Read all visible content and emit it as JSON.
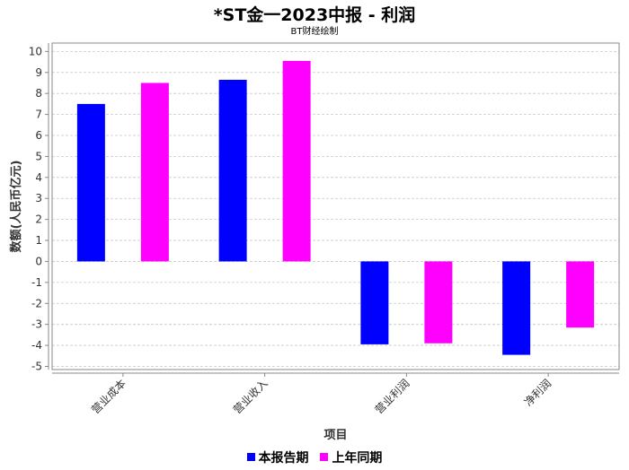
{
  "chart_data": {
    "type": "bar",
    "title": "*ST金一2023中报 - 利润",
    "subtitle": "BT财经绘制",
    "xlabel": "项目",
    "ylabel": "数额(人民币亿元)",
    "categories": [
      "营业成本",
      "营业收入",
      "营业利润",
      "净利润"
    ],
    "series": [
      {
        "name": "本报告期",
        "color": "#0000ff",
        "values": [
          7.5,
          8.65,
          -3.95,
          -4.45
        ]
      },
      {
        "name": "上年同期",
        "color": "#ff00ff",
        "values": [
          8.5,
          9.55,
          -3.9,
          -3.15
        ]
      }
    ],
    "ylim": [
      -5.15,
      10.4
    ],
    "yticks": [
      "10",
      "9",
      "8",
      "7",
      "6",
      "5",
      "4",
      "3",
      "2",
      "1",
      "0",
      "-1",
      "-2",
      "-3",
      "-4",
      "-5"
    ],
    "grid": true,
    "legend_position": "bottom"
  }
}
